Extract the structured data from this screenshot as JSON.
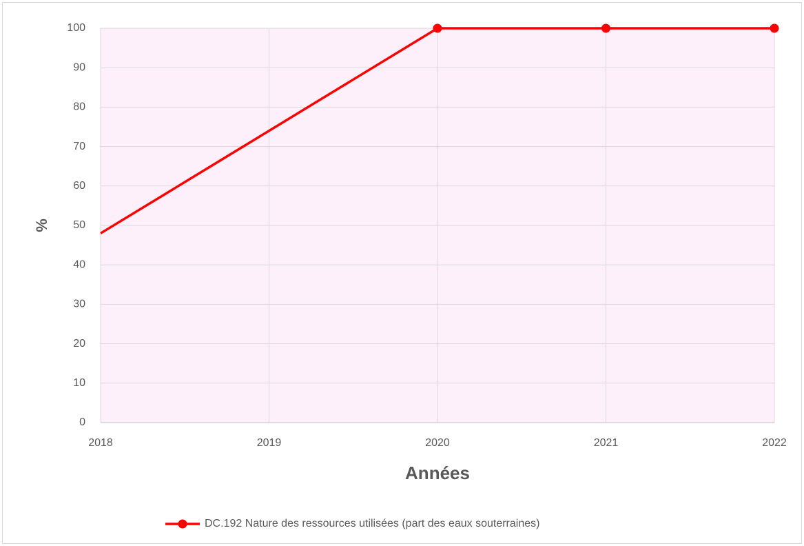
{
  "chart_data": {
    "type": "line",
    "x_label": "Années",
    "y_label": "%",
    "x": [
      2018,
      2019,
      2020,
      2021,
      2022
    ],
    "series": [
      {
        "name": "DC.192 Nature des ressources utilisées (part des eaux souterraines)",
        "color": "#ff0000",
        "values": [
          48,
          74,
          100,
          100,
          100
        ],
        "markers": [
          false,
          false,
          true,
          true,
          true
        ]
      }
    ],
    "xlim": [
      2018,
      2022
    ],
    "xticks": [
      2018,
      2019,
      2020,
      2021,
      2022
    ],
    "ylim": [
      0,
      100
    ],
    "yticks": [
      0,
      10,
      20,
      30,
      40,
      50,
      60,
      70,
      80,
      90,
      100
    ],
    "grid": true,
    "legend": "bottom",
    "plot_background": "#fdf0fb"
  }
}
